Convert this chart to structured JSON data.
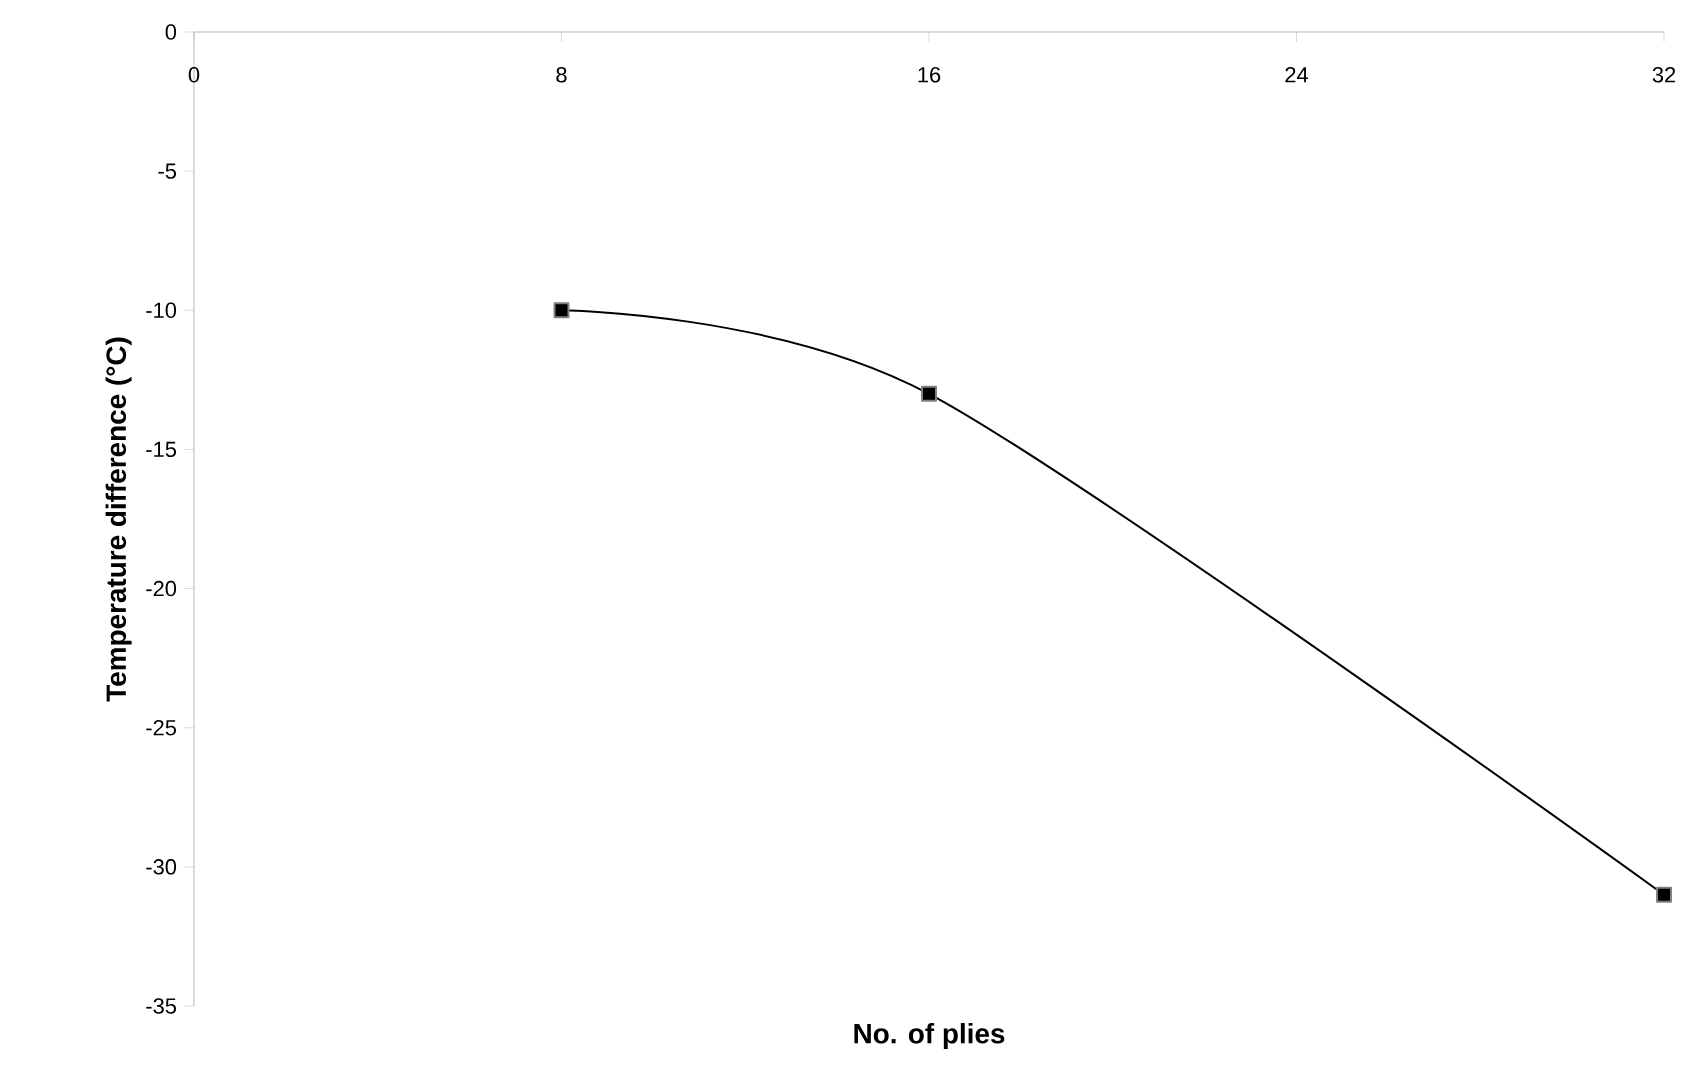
{
  "chart_data": {
    "type": "line",
    "xlabel": "No. of plies",
    "ylabel": "Temperature difference (°C)",
    "x": [
      8,
      16,
      32
    ],
    "series": [
      {
        "color": "#000000",
        "values": [
          -10,
          -13,
          -31
        ]
      }
    ],
    "xlim": [
      0,
      32
    ],
    "ylim": [
      -35,
      0
    ],
    "xticks": [
      0,
      8,
      16,
      24,
      32
    ],
    "yticks": [
      -35,
      -30,
      -25,
      -20,
      -15,
      -10,
      -5,
      0
    ],
    "marker": "square"
  }
}
